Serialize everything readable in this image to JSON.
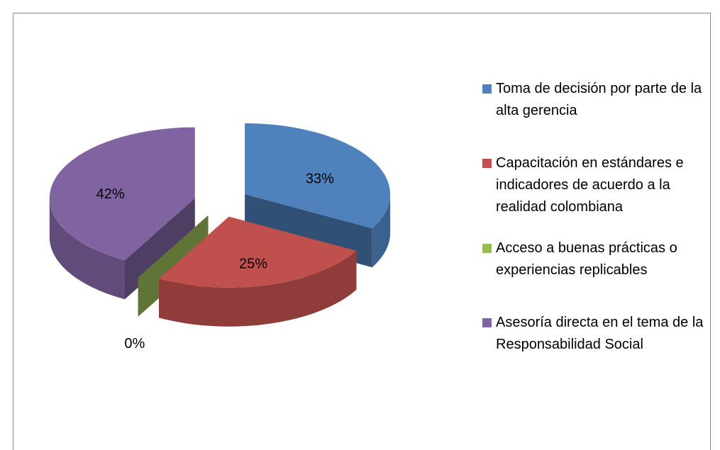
{
  "chart_data": {
    "type": "pie",
    "categories": [
      "Toma de decisión por parte de la alta gerencia",
      "Capacitación en estándares e indicadores de acuerdo a la realidad colombiana",
      "Acceso a buenas prácticas o experiencias replicables",
      "Asesoría directa en el tema de la Responsabilidad Social"
    ],
    "values": [
      33,
      25,
      0,
      42
    ],
    "value_labels": [
      "33%",
      "25%",
      "0%",
      "42%"
    ],
    "colors": [
      "#4f81bd",
      "#c0504d",
      "#9bbb59",
      "#8064a2"
    ],
    "legend": "right"
  }
}
